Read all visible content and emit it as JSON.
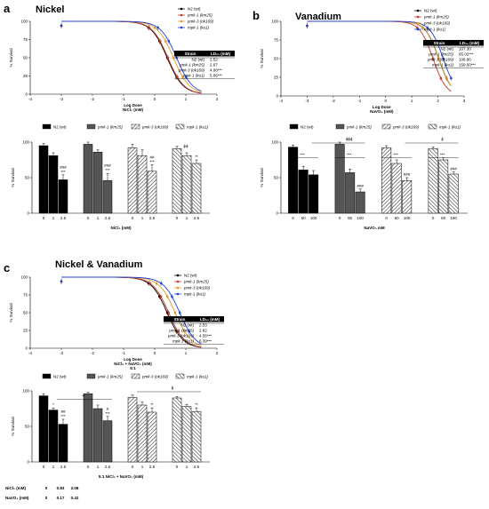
{
  "panels": [
    {
      "letter": "a",
      "title": "Nickel"
    },
    {
      "letter": "b",
      "title": "Vanadium"
    },
    {
      "letter": "c",
      "title": "Nickel & Vanadium"
    }
  ],
  "colors": {
    "N2 (wt)": "#000000",
    "pmk-1 (km25)": "#c0392b",
    "pmk-3 (ok169)": "#e69a1f",
    "mpk-1 (ku1)": "#1f3fd6"
  },
  "chart_data": [
    {
      "panel": "a",
      "type": "line",
      "title": "Nickel",
      "xlabel": "Log Dose NiCl₂ (mM)",
      "ylabel": "% Survival",
      "xlim": [
        -4,
        2
      ],
      "ylim": [
        0,
        100
      ],
      "xticks": [
        -4,
        -3,
        -2,
        -1,
        0,
        1,
        2
      ],
      "yticks": [
        0,
        25,
        50,
        75,
        100
      ],
      "legend": [
        "N2 (wt)",
        "pmk-1 (km25)",
        "pmk-3 (ok169)",
        "mpk-1 (ku1)"
      ],
      "ld50": {
        "N2 (wt)": 2.52,
        "pmk-1 (km25)": 2.67,
        "pmk-3 (ok169)": 4.0,
        "mpk-1 (ku1)": 5.06
      },
      "table": {
        "headers": [
          "Strain",
          "LD₅₀ (mM)"
        ],
        "rows": [
          [
            "N2 (wt)",
            "2.52"
          ],
          [
            "pmk-1 (km25)",
            "2.67"
          ],
          [
            "pmk-3 (ok169)",
            "4.00***"
          ],
          [
            "mpk-1 (ku1)",
            "5.06***"
          ]
        ]
      }
    },
    {
      "panel": "b",
      "type": "line",
      "title": "Vanadium",
      "xlabel": "Log Dose NaVO₃ (mM)",
      "ylabel": "% Survival",
      "xlim": [
        -4,
        3
      ],
      "ylim": [
        0,
        100
      ],
      "xticks": [
        -4,
        -3,
        -2,
        -1,
        0,
        1,
        2,
        3
      ],
      "yticks": [
        0,
        25,
        50,
        75,
        100
      ],
      "legend": [
        "N2 (wt)",
        "pmk-1 (km25)",
        "pmk-3 (ok169)",
        "mpk-1 (ku1)"
      ],
      "ld50": {
        "N2 (wt)": 107.3,
        "pmk-1 (km25)": 65.02,
        "pmk-3 (ok169)": 108.9,
        "mpk-1 (ku1)": 159.5
      },
      "table": {
        "headers": [
          "Strain",
          "LD₅₀ (mM)"
        ],
        "rows": [
          [
            "N2 (wt)",
            "107.30"
          ],
          [
            "pmk-1 (km25)",
            "65.02***"
          ],
          [
            "pmk-3 (ok169)",
            "108.90"
          ],
          [
            "mpk-1 (ku1)",
            "159.50***"
          ]
        ]
      }
    },
    {
      "panel": "c",
      "type": "line",
      "title": "Nickel & Vanadium",
      "xlabel": "Log Dose NiCl₂ + NaVO₃ (mM) 5:1",
      "ylabel": "% Survival",
      "xlim": [
        -4,
        2
      ],
      "ylim": [
        0,
        100
      ],
      "xticks": [
        -4,
        -3,
        -2,
        -1,
        0,
        1,
        2
      ],
      "yticks": [
        0,
        25,
        50,
        75,
        100
      ],
      "legend": [
        "N2 (wt)",
        "pmk-1 (km25)",
        "pmk-3 (ok169)",
        "mpk-1 (ku1)"
      ],
      "ld50": {
        "N2 (wt)": 2.53,
        "pmk-1 (km25)": 2.82,
        "pmk-3 (ok169)": 4.55,
        "mpk-1 (ku1)": 6.39
      },
      "table": {
        "headers": [
          "Strain",
          "LD₅₀ (mM)"
        ],
        "rows": [
          [
            "N2 (wt)",
            "2.53"
          ],
          [
            "pmk-1 (km25)",
            "2.82"
          ],
          [
            "pmk-3 (ok169)",
            "4.55***"
          ],
          [
            "mpk-1 (ku1)",
            "6.39***"
          ]
        ]
      }
    },
    {
      "panel": "a",
      "type": "bar",
      "ylabel": "% Survival",
      "xlabel": "NiCl₂ (mM)",
      "ylim": [
        0,
        100
      ],
      "yticks": [
        0,
        50,
        100
      ],
      "legend": [
        "N2 (wt)",
        "pmk-1 (km25)",
        "pmk-3 (ok169)",
        "mpk-1 (ku1)"
      ],
      "groups": [
        {
          "name": "N2 (wt)",
          "doses": [
            "0",
            "1",
            "2.5"
          ],
          "values": [
            95,
            81,
            47
          ],
          "errors": [
            3,
            4,
            7
          ],
          "marks": [
            "",
            "",
            "###\n***"
          ]
        },
        {
          "name": "pmk-1 (km25)",
          "doses": [
            "0",
            "1",
            "2.5"
          ],
          "values": [
            97,
            86,
            46
          ],
          "errors": [
            3,
            3,
            10
          ],
          "marks": [
            "",
            "",
            "###\n***"
          ]
        },
        {
          "name": "pmk-3 (ok169)",
          "doses": [
            "0",
            "1",
            "2.5"
          ],
          "values": [
            92,
            81,
            59
          ],
          "errors": [
            5,
            8,
            9
          ],
          "marks": [
            "",
            "",
            "##\n***"
          ]
        },
        {
          "name": "mpk-1 (ku1)",
          "doses": [
            "0",
            "1",
            "2.5"
          ],
          "values": [
            91,
            81,
            70
          ],
          "errors": [
            3,
            4,
            5
          ],
          "marks": [
            "",
            "",
            "**"
          ]
        }
      ],
      "top_marks": [
        "ϕϕ"
      ]
    },
    {
      "panel": "b",
      "type": "bar",
      "ylabel": "% Survival",
      "xlabel": "NaVO₃ mM",
      "ylim": [
        0,
        100
      ],
      "yticks": [
        0,
        50,
        100
      ],
      "legend": [
        "N2 (wt)",
        "pmk-1 (km25)",
        "pmk-3 (ok169)",
        "mpk-1 (ku1)"
      ],
      "groups": [
        {
          "name": "N2 (wt)",
          "doses": [
            "0",
            "50",
            "100"
          ],
          "values": [
            93,
            61,
            54
          ],
          "errors": [
            3,
            5,
            6
          ],
          "marks": [
            "",
            "",
            ""
          ]
        },
        {
          "name": "pmk-1 (km25)",
          "doses": [
            "0",
            "50",
            "100"
          ],
          "values": [
            97,
            57,
            30
          ],
          "errors": [
            3,
            5,
            4
          ],
          "marks": [
            "",
            "",
            "###"
          ]
        },
        {
          "name": "pmk-3 (ok169)",
          "doses": [
            "0",
            "50",
            "100"
          ],
          "values": [
            92,
            70,
            46
          ],
          "errors": [
            3,
            5,
            4
          ],
          "marks": [
            "",
            "",
            "###"
          ]
        },
        {
          "name": "mpk-1 (ku1)",
          "doses": [
            "0",
            "50",
            "100"
          ],
          "values": [
            91,
            75,
            55
          ],
          "errors": [
            2,
            3,
            3
          ],
          "marks": [
            "",
            "",
            "###"
          ]
        }
      ],
      "bracket_marks": [
        "***",
        "***",
        "***",
        "***"
      ],
      "top_marks": [
        "ϕϕϕ",
        "ϕ"
      ]
    },
    {
      "panel": "c",
      "type": "bar",
      "ylabel": "% Survival",
      "xlabel": "5:1 NiCl₂ + NaVO₃ (mM)",
      "ylim": [
        0,
        100
      ],
      "yticks": [
        0,
        50,
        100
      ],
      "legend": [
        "N2 (wt)",
        "pmk-1 (km25)",
        "pmk-3 (ok169)",
        "mpk-1 (ku1)"
      ],
      "groups": [
        {
          "name": "N2 (wt)",
          "doses": [
            "0",
            "1",
            "2.5"
          ],
          "values": [
            93,
            73,
            53
          ],
          "errors": [
            3,
            3,
            7
          ],
          "marks": [
            "",
            "*",
            "##\n***"
          ]
        },
        {
          "name": "pmk-1 (km25)",
          "doses": [
            "0",
            "1",
            "2.5"
          ],
          "values": [
            96,
            75,
            58
          ],
          "errors": [
            2,
            5,
            6
          ],
          "marks": [
            "",
            "",
            "#\n***"
          ]
        },
        {
          "name": "pmk-3 (ok169)",
          "doses": [
            "0",
            "1",
            "2.5"
          ],
          "values": [
            91,
            80,
            70
          ],
          "errors": [
            3,
            4,
            6
          ],
          "marks": [
            "",
            "",
            "**"
          ]
        },
        {
          "name": "mpk-1 (ku1)",
          "doses": [
            "0",
            "1",
            "2.5"
          ],
          "values": [
            90,
            78,
            71
          ],
          "errors": [
            2,
            3,
            5
          ],
          "marks": [
            "",
            "",
            "**"
          ]
        }
      ],
      "bracket_marks": [
        "**"
      ],
      "top_marks": [
        "ϕ"
      ],
      "dose_table": {
        "rows": [
          {
            "label": "NiCl₂ (mM)",
            "values": [
              "0",
              "0.83",
              "2.08"
            ]
          },
          {
            "label": "NaVO₃ (mM)",
            "values": [
              "0",
              "0.17",
              "0.42"
            ]
          }
        ]
      }
    }
  ]
}
